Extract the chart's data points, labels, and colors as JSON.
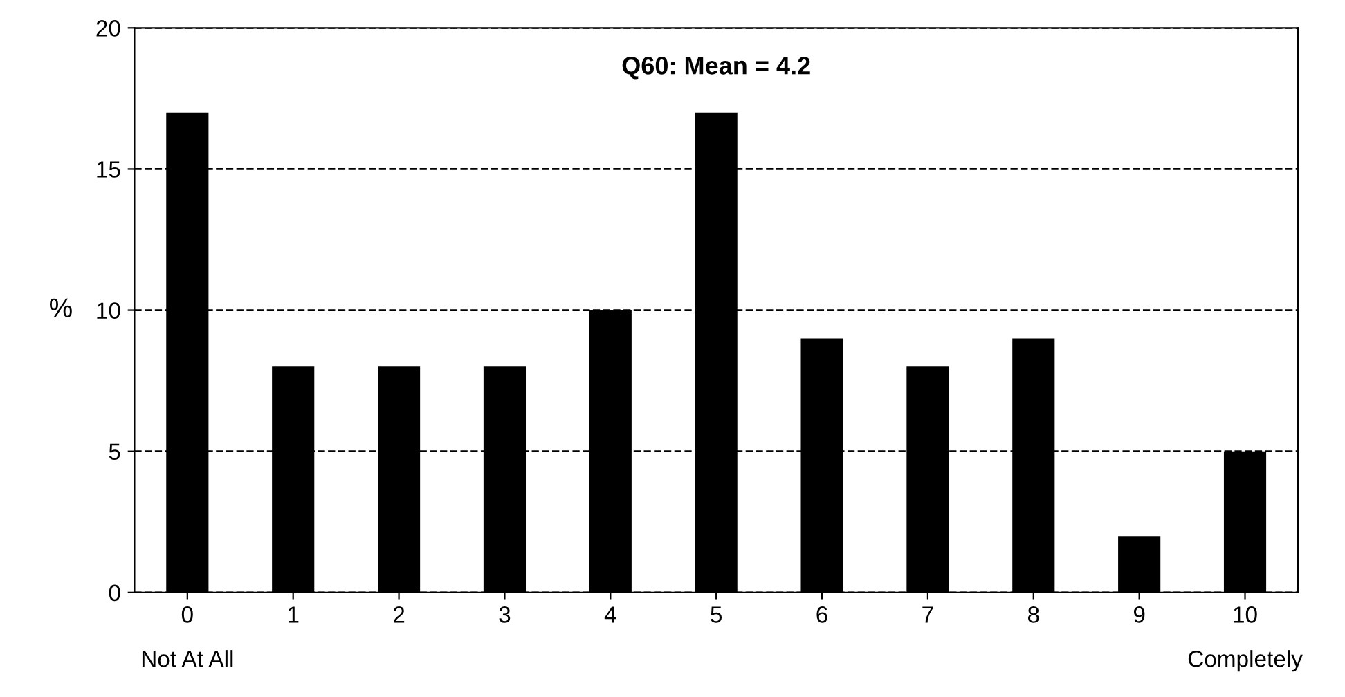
{
  "chart_data": {
    "type": "bar",
    "title": "Q60: Mean = 4.2",
    "ylabel": "%",
    "categories": [
      "0",
      "1",
      "2",
      "3",
      "4",
      "5",
      "6",
      "7",
      "8",
      "9",
      "10"
    ],
    "values": [
      17,
      8,
      8,
      8,
      10,
      17,
      9,
      8,
      9,
      2,
      5
    ],
    "color": "#000000",
    "ylim": [
      0,
      20
    ],
    "yticks": [
      0,
      5,
      10,
      15,
      20
    ],
    "grid": "y",
    "annotations": [
      "Not At All",
      "Completely"
    ]
  }
}
